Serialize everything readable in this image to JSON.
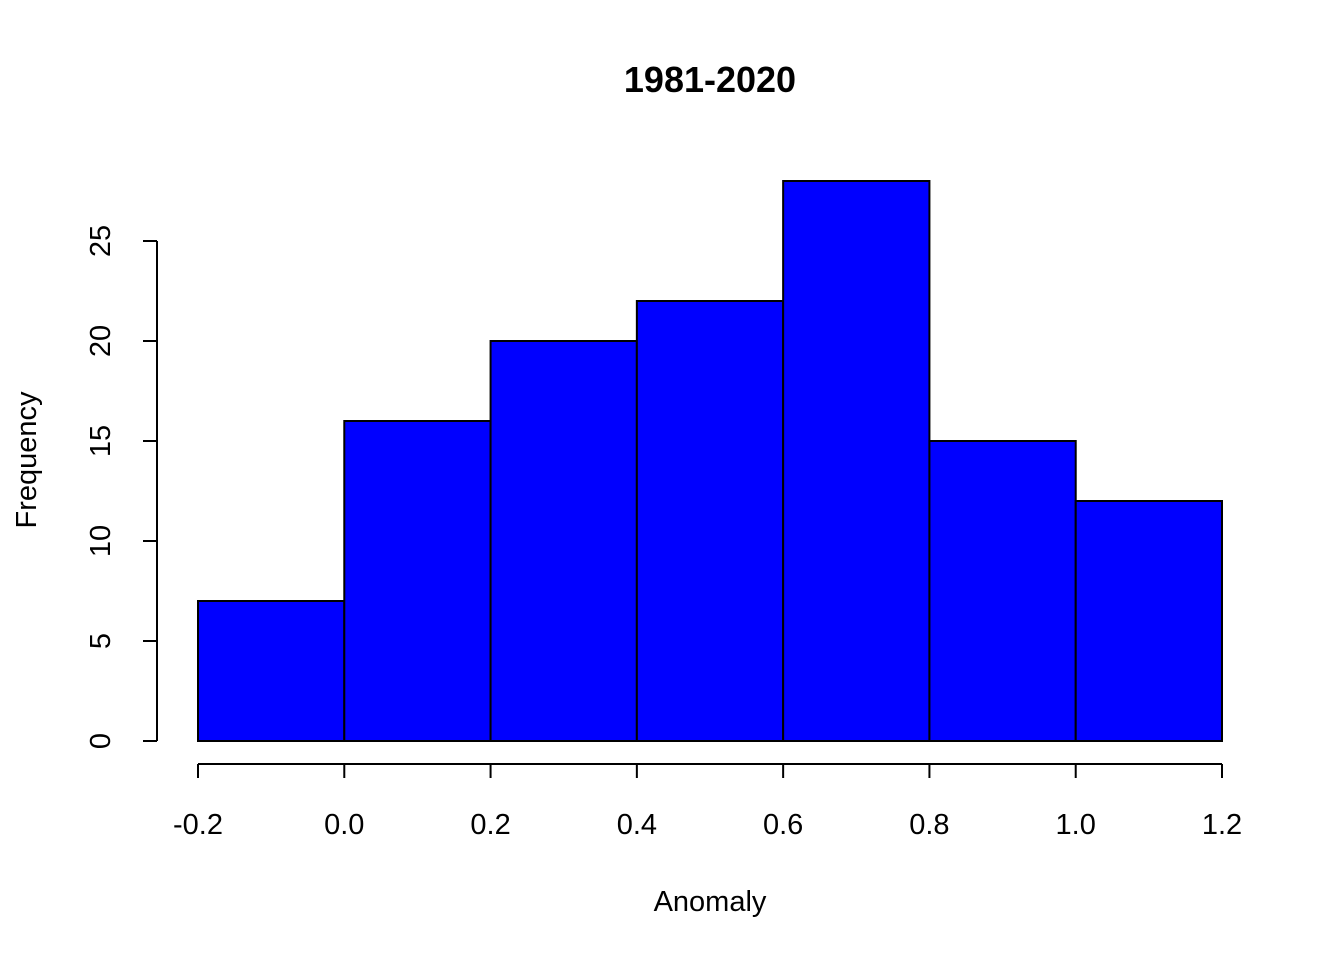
{
  "chart_data": {
    "type": "bar",
    "title": "1981-2020",
    "xlabel": "Anomaly",
    "ylabel": "Frequency",
    "bins": [
      {
        "start": -0.2,
        "end": 0.0,
        "value": 7
      },
      {
        "start": 0.0,
        "end": 0.2,
        "value": 16
      },
      {
        "start": 0.2,
        "end": 0.4,
        "value": 20
      },
      {
        "start": 0.4,
        "end": 0.6,
        "value": 22
      },
      {
        "start": 0.6,
        "end": 0.8,
        "value": 28
      },
      {
        "start": 0.8,
        "end": 1.0,
        "value": 15
      },
      {
        "start": 1.0,
        "end": 1.2,
        "value": 12
      }
    ],
    "x_ticks": [
      "-0.2",
      "0.0",
      "0.2",
      "0.4",
      "0.6",
      "0.8",
      "1.0",
      "1.2"
    ],
    "x_tick_values": [
      -0.2,
      0.0,
      0.2,
      0.4,
      0.6,
      0.8,
      1.0,
      1.2
    ],
    "y_ticks": [
      "0",
      "5",
      "10",
      "15",
      "20",
      "25"
    ],
    "y_tick_values": [
      0,
      5,
      10,
      15,
      20,
      25
    ],
    "xlim": [
      -0.2,
      1.2
    ],
    "ylim": [
      0,
      28
    ],
    "grid": false,
    "legend": "none",
    "bar_color": "#0000ff",
    "bar_border_color": "#000000"
  }
}
